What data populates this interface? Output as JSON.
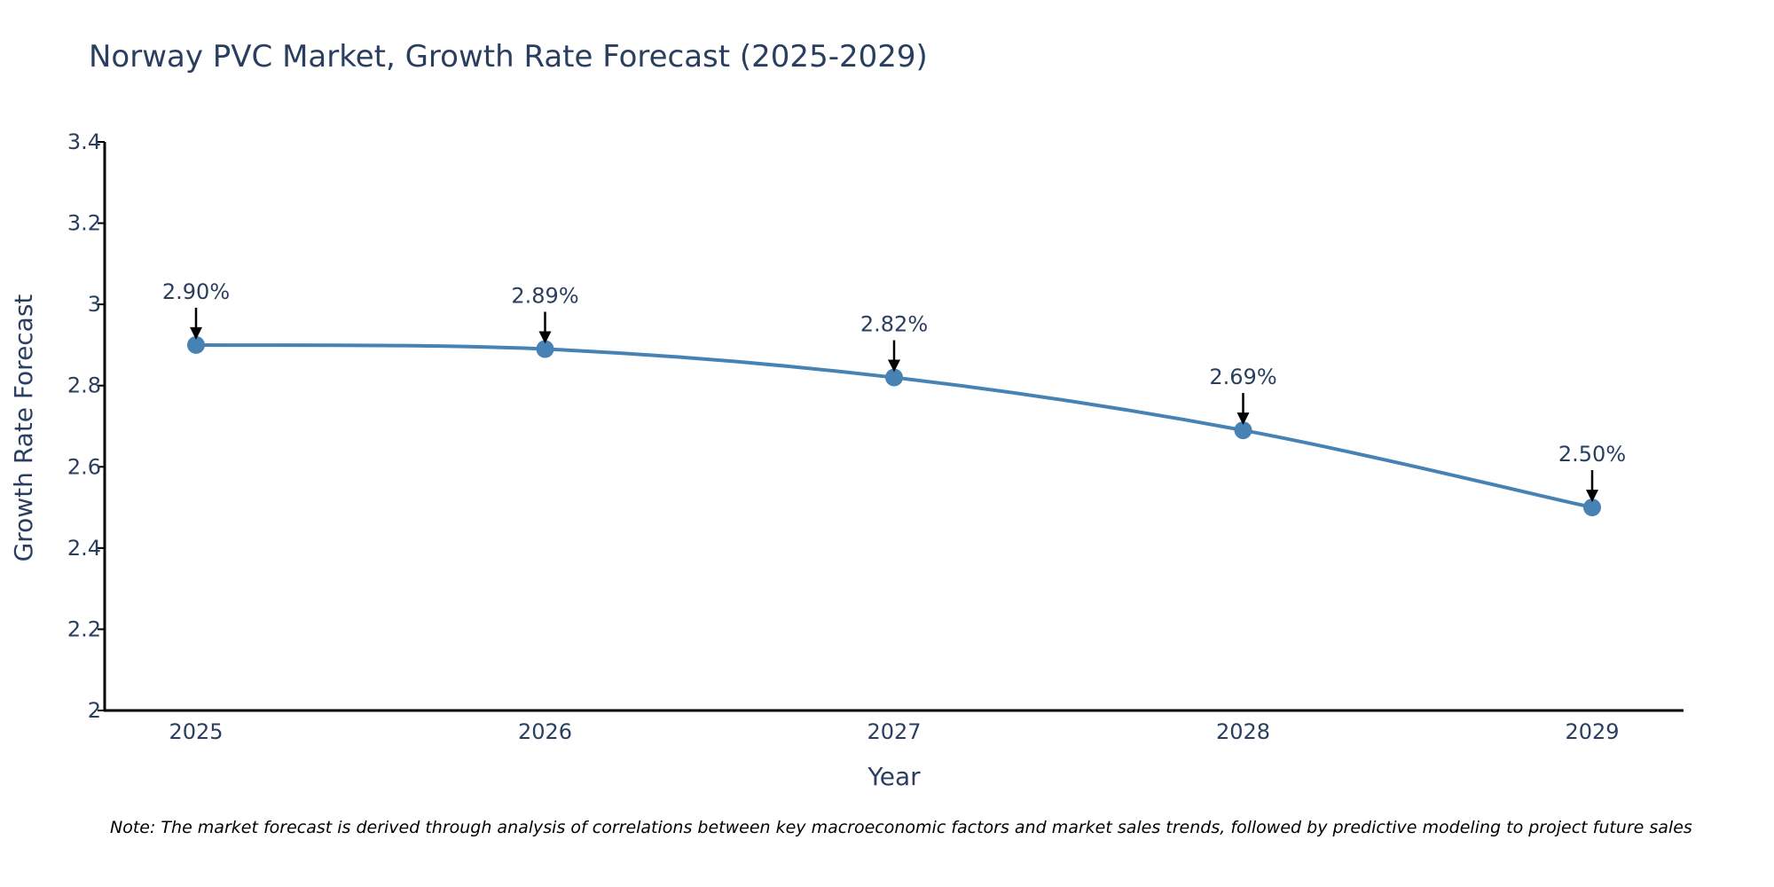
{
  "chart_data": {
    "type": "line",
    "title": "Norway PVC Market, Growth Rate Forecast (2025-2029)",
    "xlabel": "Year",
    "ylabel": "Growth Rate Forecast",
    "categories": [
      "2025",
      "2026",
      "2027",
      "2028",
      "2029"
    ],
    "series": [
      {
        "name": "Growth Rate Forecast",
        "values": [
          2.9,
          2.89,
          2.82,
          2.69,
          2.5
        ],
        "labels": [
          "2.90%",
          "2.89%",
          "2.82%",
          "2.69%",
          "2.50%"
        ]
      }
    ],
    "ylim": [
      2,
      3.4
    ],
    "yticks": [
      2,
      2.2,
      2.4,
      2.6,
      2.8,
      3,
      3.2,
      3.4
    ],
    "ytick_labels": [
      "2",
      "2.2",
      "2.4",
      "2.6",
      "2.8",
      "3",
      "3.2",
      "3.4"
    ],
    "grid": false,
    "line_shape": "spline"
  },
  "note": "Note: The market forecast is derived through analysis of correlations between key macroeconomic factors and market sales trends, followed by predictive modeling to project future sales",
  "colors": {
    "line": "#4682b4",
    "marker": "#4682b4",
    "text": "#2a3f5f",
    "axis": "#000000",
    "arrow": "#000000"
  }
}
